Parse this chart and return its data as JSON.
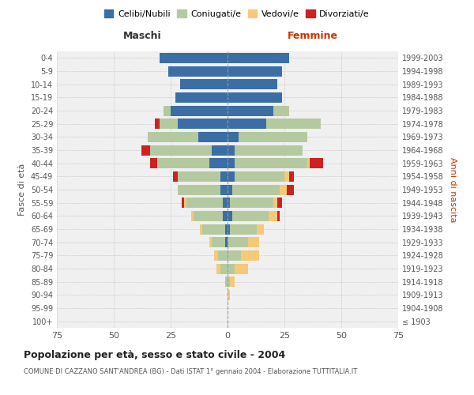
{
  "age_groups": [
    "100+",
    "95-99",
    "90-94",
    "85-89",
    "80-84",
    "75-79",
    "70-74",
    "65-69",
    "60-64",
    "55-59",
    "50-54",
    "45-49",
    "40-44",
    "35-39",
    "30-34",
    "25-29",
    "20-24",
    "15-19",
    "10-14",
    "5-9",
    "0-4"
  ],
  "birth_years": [
    "≤ 1903",
    "1904-1908",
    "1909-1913",
    "1914-1918",
    "1919-1923",
    "1924-1928",
    "1929-1933",
    "1934-1938",
    "1939-1943",
    "1944-1948",
    "1949-1953",
    "1954-1958",
    "1959-1963",
    "1964-1968",
    "1969-1973",
    "1974-1978",
    "1979-1983",
    "1984-1988",
    "1989-1993",
    "1994-1998",
    "1999-2003"
  ],
  "maschi": {
    "celibi": [
      0,
      0,
      0,
      0,
      0,
      0,
      1,
      1,
      2,
      2,
      3,
      3,
      8,
      7,
      13,
      22,
      25,
      23,
      21,
      26,
      30
    ],
    "coniugati": [
      0,
      0,
      0,
      1,
      3,
      4,
      6,
      10,
      13,
      16,
      19,
      19,
      23,
      27,
      22,
      8,
      3,
      0,
      0,
      0,
      0
    ],
    "vedovi": [
      0,
      0,
      0,
      0,
      2,
      2,
      1,
      1,
      1,
      1,
      0,
      0,
      0,
      0,
      0,
      0,
      0,
      0,
      0,
      0,
      0
    ],
    "divorziati": [
      0,
      0,
      0,
      0,
      0,
      0,
      0,
      0,
      0,
      1,
      0,
      2,
      3,
      4,
      0,
      2,
      0,
      0,
      0,
      0,
      0
    ]
  },
  "femmine": {
    "nubili": [
      0,
      0,
      0,
      0,
      0,
      0,
      0,
      1,
      2,
      1,
      2,
      3,
      3,
      3,
      5,
      17,
      20,
      24,
      22,
      24,
      27
    ],
    "coniugate": [
      0,
      0,
      0,
      1,
      3,
      6,
      9,
      12,
      16,
      19,
      21,
      22,
      32,
      30,
      30,
      24,
      7,
      0,
      0,
      0,
      0
    ],
    "vedove": [
      0,
      0,
      1,
      2,
      6,
      8,
      5,
      3,
      4,
      2,
      3,
      2,
      1,
      0,
      0,
      0,
      0,
      0,
      0,
      0,
      0
    ],
    "divorziate": [
      0,
      0,
      0,
      0,
      0,
      0,
      0,
      0,
      1,
      2,
      3,
      2,
      6,
      0,
      0,
      0,
      0,
      0,
      0,
      0,
      0
    ]
  },
  "colors": {
    "celibi": "#3a6ea5",
    "coniugati": "#b5c9a0",
    "vedovi": "#f5c97a",
    "divorziati": "#cc2222"
  },
  "xlim": 75,
  "title": "Popolazione per età, sesso e stato civile - 2004",
  "subtitle": "COMUNE DI CAZZANO SANT'ANDREA (BG) - Dati ISTAT 1° gennaio 2004 - Elaborazione TUTTITALIA.IT",
  "ylabel_left": "Fasce di età",
  "ylabel_right": "Anni di nascita",
  "legend_labels": [
    "Celibi/Nubili",
    "Coniugati/e",
    "Vedovi/e",
    "Divorziati/e"
  ],
  "maschi_label": "Maschi",
  "femmine_label": "Femmine",
  "bg_color": "#ffffff",
  "plot_bg_color": "#f0f0f0"
}
